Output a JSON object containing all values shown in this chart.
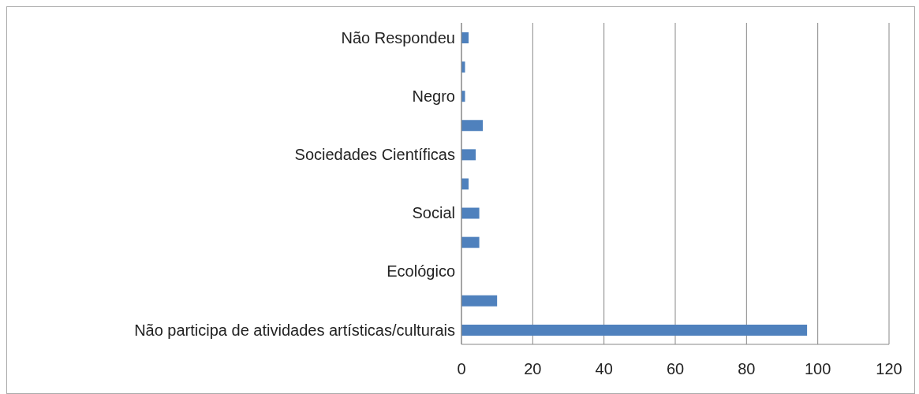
{
  "chart_data": {
    "type": "bar",
    "orientation": "horizontal",
    "categories": [
      "Não Respondeu",
      null,
      "Negro",
      null,
      "Sociedades Científicas",
      null,
      "Social",
      null,
      "Ecológico",
      null,
      "Não participa de atividades artísticas/culturais"
    ],
    "values": [
      2,
      1,
      1,
      6,
      4,
      2,
      5,
      5,
      0,
      10,
      97
    ],
    "color": "#4f81bd",
    "xlim": [
      0,
      120
    ],
    "xticks": [
      0,
      20,
      40,
      60,
      80,
      100,
      120
    ],
    "grid": "x"
  }
}
